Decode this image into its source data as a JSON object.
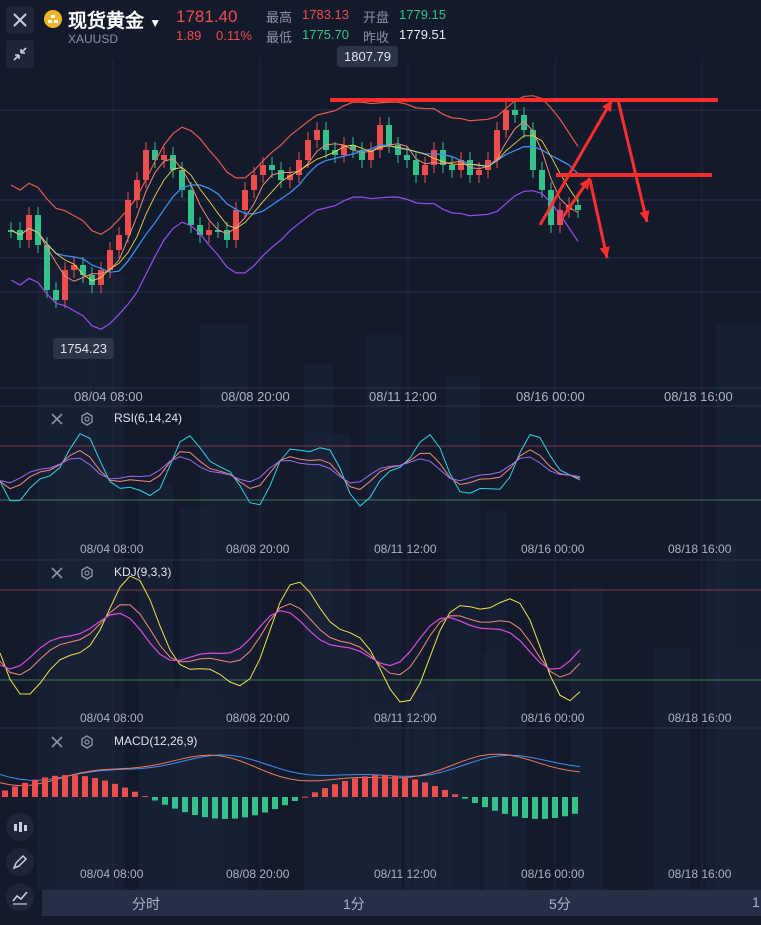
{
  "header": {
    "title": "现货黄金",
    "symbol": "XAUUSD",
    "price": "1781.40",
    "change": "1.89",
    "change_pct": "0.11%",
    "high_label": "最高",
    "high_value": "1783.13",
    "open_label": "开盘",
    "open_value": "1779.15",
    "low_label": "最低",
    "low_value": "1775.70",
    "prevclose_label": "昨收",
    "prevclose_value": "1779.51"
  },
  "price_tags": {
    "max": "1807.79",
    "min": "1754.23"
  },
  "time_ticks": [
    "08/04 08:00",
    "08/08 20:00",
    "08/11 12:00",
    "08/16 00:00",
    "08/18 16:00"
  ],
  "indicators": {
    "rsi": "RSI(6,14,24)",
    "kdj": "KDJ(9,3,3)",
    "macd": "MACD(12,26,9)"
  },
  "bottom_tabs": [
    "分时",
    "1分",
    "5分",
    "1"
  ],
  "colors": {
    "background": "#131a2b",
    "up": "#ee4d4d",
    "down": "#33c28a",
    "annotation": "#ff2e2e"
  },
  "icons": [
    "close-icon",
    "collapse-icon",
    "candlestick-icon",
    "pen-icon",
    "line-chart-icon",
    "gear-icon",
    "gold-coin-icon",
    "caret-down-icon"
  ]
}
